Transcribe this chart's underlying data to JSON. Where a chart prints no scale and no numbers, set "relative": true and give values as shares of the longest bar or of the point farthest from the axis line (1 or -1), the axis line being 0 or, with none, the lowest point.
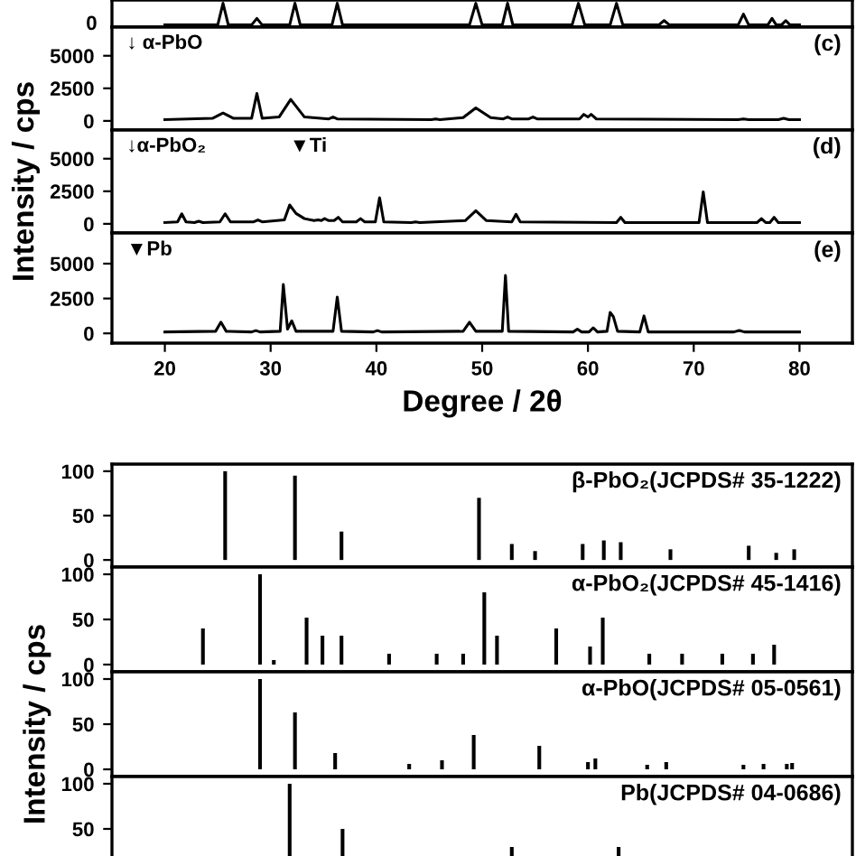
{
  "chart_data": [
    {
      "type": "line",
      "relative": true,
      "annotations": [
        "0"
      ],
      "xlim": [
        15,
        85
      ],
      "xticks": [
        20,
        30,
        40,
        50,
        60,
        70,
        80
      ],
      "tick_labels": false,
      "series": [
        {
          "color": "#000000",
          "x": [
            20,
            25,
            25.5,
            26,
            28.2,
            28.7,
            29.2,
            31.8,
            32.3,
            32.8,
            35.8,
            36.3,
            36.8,
            48.8,
            49.4,
            50,
            51.9,
            52.4,
            52.9,
            58.5,
            59.1,
            59.7,
            62.1,
            62.7,
            63.3,
            66.7,
            67.2,
            67.7,
            74.2,
            74.7,
            75.2,
            77,
            77.4,
            77.8,
            78.3,
            78.7,
            79.1,
            80
          ],
          "values": [
            0,
            0,
            1,
            0,
            0,
            0.3,
            0,
            0,
            1,
            0,
            0,
            1,
            0,
            0,
            1,
            0,
            0,
            1,
            0,
            0,
            1,
            0,
            0,
            1,
            0,
            0,
            0.2,
            0,
            0,
            0.5,
            0,
            0,
            0.3,
            0,
            0,
            0.2,
            0,
            0
          ]
        }
      ]
    },
    {
      "type": "line",
      "title": "(c)",
      "annotations": [
        "↓ α-PbO"
      ],
      "xlim": [
        15,
        85
      ],
      "xticks": [
        20,
        30,
        40,
        50,
        60,
        70,
        80
      ],
      "ylim": [
        -700,
        7200
      ],
      "yticks": [
        0,
        2500,
        5000
      ],
      "tick_labels": "y",
      "series": [
        {
          "color": "#000000",
          "x": [
            20,
            24.5,
            25.5,
            26.5,
            28.2,
            28.7,
            29.2,
            30.8,
            31.9,
            33.2,
            35.5,
            35.9,
            36.3,
            45.2,
            45.6,
            46,
            48.2,
            49.4,
            50.8,
            52,
            52.4,
            52.8,
            54.4,
            54.8,
            55.2,
            59.2,
            59.6,
            60,
            60.3,
            60.8,
            74.2,
            74.7,
            75.2,
            78,
            78.5,
            79,
            80
          ],
          "values": [
            100,
            200,
            600,
            200,
            200,
            2100,
            200,
            300,
            1650,
            300,
            150,
            300,
            150,
            100,
            150,
            100,
            250,
            1000,
            250,
            150,
            300,
            150,
            150,
            300,
            150,
            150,
            500,
            300,
            500,
            150,
            100,
            150,
            100,
            100,
            200,
            100,
            100
          ]
        }
      ]
    },
    {
      "type": "line",
      "title": "(d)",
      "ylabel": "Intensity / cps",
      "annotations": [
        "↓α-PbO₂",
        "▼Ti"
      ],
      "xlim": [
        15,
        85
      ],
      "xticks": [
        20,
        30,
        40,
        50,
        60,
        70,
        80
      ],
      "ylim": [
        -700,
        7200
      ],
      "yticks": [
        0,
        2500,
        5000
      ],
      "tick_labels": "y",
      "series": [
        {
          "color": "#000000",
          "x": [
            20,
            21.2,
            21.6,
            22,
            22.8,
            23.2,
            23.6,
            25.2,
            25.7,
            26.2,
            28.4,
            28.8,
            29.2,
            31.3,
            31.8,
            32.4,
            33.2,
            34.1,
            34.5,
            34.8,
            35.1,
            35.5,
            36,
            36.4,
            36.8,
            38.1,
            38.5,
            38.9,
            39.9,
            40.3,
            40.7,
            43.3,
            43.7,
            44.1,
            48.4,
            49.4,
            50.4,
            52.8,
            53.2,
            53.6,
            62.7,
            63.1,
            63.5,
            70.5,
            70.9,
            71.3,
            76,
            76.4,
            76.8,
            77.2,
            77.6,
            78,
            80
          ],
          "values": [
            100,
            150,
            770,
            150,
            100,
            200,
            100,
            150,
            770,
            150,
            150,
            300,
            150,
            300,
            1450,
            800,
            400,
            250,
            300,
            250,
            400,
            250,
            250,
            500,
            150,
            150,
            400,
            150,
            150,
            2000,
            150,
            100,
            150,
            100,
            250,
            1000,
            250,
            150,
            730,
            150,
            100,
            500,
            100,
            100,
            2450,
            100,
            100,
            400,
            100,
            100,
            500,
            100,
            100
          ]
        }
      ]
    },
    {
      "type": "line",
      "title": "(e)",
      "xlabel": "Degree / 2θ",
      "annotations": [
        "▼Pb"
      ],
      "xlim": [
        15,
        85
      ],
      "xticks": [
        20,
        30,
        40,
        50,
        60,
        70,
        80
      ],
      "ylim": [
        -700,
        7200
      ],
      "yticks": [
        0,
        2500,
        5000
      ],
      "series": [
        {
          "color": "#000000",
          "x": [
            20,
            24.8,
            25.3,
            25.8,
            28.2,
            28.6,
            29,
            30.9,
            31.2,
            31.6,
            32,
            32.4,
            35.9,
            36.3,
            36.7,
            39.7,
            40.1,
            40.5,
            48.2,
            48.8,
            49.4,
            51.9,
            52.2,
            52.5,
            58.6,
            59,
            59.4,
            60.1,
            60.5,
            60.9,
            61.8,
            62.1,
            62.4,
            62.8,
            64.9,
            65.3,
            65.7,
            73.8,
            74.3,
            74.8,
            80
          ],
          "values": [
            100,
            150,
            800,
            150,
            100,
            200,
            100,
            150,
            3500,
            300,
            900,
            150,
            150,
            2600,
            150,
            100,
            200,
            100,
            150,
            800,
            150,
            150,
            4150,
            150,
            100,
            300,
            100,
            100,
            400,
            100,
            150,
            1500,
            1200,
            150,
            100,
            1250,
            100,
            100,
            200,
            100,
            100
          ]
        }
      ]
    },
    {
      "type": "bar",
      "title": "β-PbO₂(JCPDS# 35-1222)",
      "xlim": [
        15,
        85
      ],
      "ylim": [
        -8,
        108
      ],
      "yticks": [
        0,
        50,
        100
      ],
      "tick_labels": "y",
      "x": [
        25.7,
        32.3,
        36.7,
        49.7,
        52.8,
        55.0,
        59.5,
        61.5,
        63.1,
        67.8,
        75.2,
        77.8,
        79.5
      ],
      "values": [
        100,
        95,
        32,
        70,
        18,
        10,
        18,
        22,
        20,
        12,
        16,
        8,
        12
      ],
      "color": "#000000"
    },
    {
      "type": "bar",
      "title": "α-PbO₂(JCPDS# 45-1416)",
      "xlim": [
        15,
        85
      ],
      "ylim": [
        -8,
        108
      ],
      "yticks": [
        0,
        50,
        100
      ],
      "tick_labels": "y",
      "x": [
        23.6,
        29.0,
        30.3,
        33.4,
        34.9,
        36.7,
        41.2,
        45.7,
        48.2,
        50.2,
        51.4,
        57.0,
        60.2,
        61.4,
        65.8,
        68.9,
        72.7,
        75.6,
        77.6
      ],
      "values": [
        40,
        100,
        5,
        52,
        32,
        32,
        12,
        12,
        12,
        80,
        32,
        40,
        20,
        52,
        12,
        12,
        12,
        12,
        22
      ],
      "color": "#000000"
    },
    {
      "type": "bar",
      "title": "α-PbO(JCPDS# 05-0561)",
      "ylabel": "Intensity / cps",
      "xlim": [
        15,
        85
      ],
      "ylim": [
        -8,
        108
      ],
      "yticks": [
        0,
        50,
        100
      ],
      "tick_labels": "y",
      "x": [
        29.0,
        32.3,
        36.1,
        43.1,
        46.2,
        49.2,
        55.4,
        60.0,
        60.7,
        65.6,
        67.4,
        74.7,
        76.6,
        78.8,
        79.3
      ],
      "values": [
        100,
        63,
        18,
        6,
        10,
        38,
        26,
        8,
        12,
        5,
        8,
        5,
        6,
        6,
        7
      ],
      "color": "#000000"
    },
    {
      "type": "bar",
      "title": "Pb(JCPDS# 04-0686)",
      "xlim": [
        15,
        85
      ],
      "ylim": [
        -8,
        108
      ],
      "yticks": [
        50,
        100
      ],
      "tick_labels": "y",
      "x": [
        31.8,
        36.8,
        52.8,
        62.9
      ],
      "values": [
        100,
        50,
        30,
        30
      ],
      "color": "#000000"
    }
  ]
}
